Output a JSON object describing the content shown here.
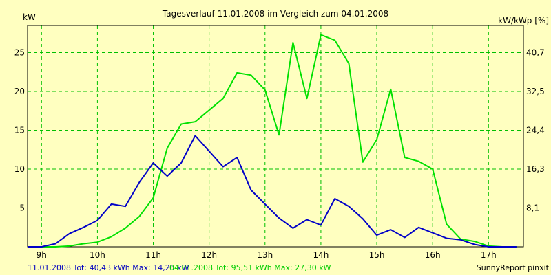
{
  "chart_data": {
    "type": "line",
    "title": "Tagesverlauf 11.01.2008 im Vergleich zum 04.01.2008",
    "ylabel_left": "kW",
    "ylabel_right": "kW/kWp [%]",
    "xlim": [
      8.75,
      17.625
    ],
    "ylim": [
      0,
      28.5
    ],
    "x_ticks": [
      {
        "value": 9,
        "label": "9h"
      },
      {
        "value": 10,
        "label": "10h"
      },
      {
        "value": 11,
        "label": "11h"
      },
      {
        "value": 12,
        "label": "12h"
      },
      {
        "value": 13,
        "label": "13h"
      },
      {
        "value": 14,
        "label": "14h"
      },
      {
        "value": 15,
        "label": "15h"
      },
      {
        "value": 16,
        "label": "16h"
      },
      {
        "value": 17,
        "label": "17h"
      }
    ],
    "y_ticks_left": [
      {
        "value": 5,
        "label": "5"
      },
      {
        "value": 10,
        "label": "10"
      },
      {
        "value": 15,
        "label": "15"
      },
      {
        "value": 20,
        "label": "20"
      },
      {
        "value": 25,
        "label": "25"
      }
    ],
    "y_ticks_right": [
      {
        "value": 5,
        "label": "8,1"
      },
      {
        "value": 10,
        "label": "16,3"
      },
      {
        "value": 15,
        "label": "24,4"
      },
      {
        "value": 20,
        "label": "32,5"
      },
      {
        "value": 25,
        "label": "40,7"
      }
    ],
    "grid": true,
    "series": [
      {
        "color": "#00e000",
        "points": [
          [
            8.75,
            0
          ],
          [
            9,
            0
          ],
          [
            9.25,
            0
          ],
          [
            9.5,
            0.1
          ],
          [
            9.75,
            0.4
          ],
          [
            10,
            0.6
          ],
          [
            10.25,
            1.3
          ],
          [
            10.5,
            2.4
          ],
          [
            10.75,
            3.9
          ],
          [
            11,
            6.3
          ],
          [
            11.25,
            12.7
          ],
          [
            11.5,
            15.8
          ],
          [
            11.75,
            16.1
          ],
          [
            12,
            17.6
          ],
          [
            12.25,
            19.1
          ],
          [
            12.5,
            22.4
          ],
          [
            12.75,
            22.1
          ],
          [
            13,
            20.2
          ],
          [
            13.25,
            14.4
          ],
          [
            13.5,
            26.3
          ],
          [
            13.75,
            19.1
          ],
          [
            14,
            27.3
          ],
          [
            14.25,
            26.6
          ],
          [
            14.5,
            23.6
          ],
          [
            14.75,
            10.9
          ],
          [
            15,
            13.8
          ],
          [
            15.25,
            20.3
          ],
          [
            15.5,
            11.5
          ],
          [
            15.75,
            11.0
          ],
          [
            16,
            10.0
          ],
          [
            16.25,
            2.9
          ],
          [
            16.5,
            1.0
          ],
          [
            16.75,
            0.7
          ],
          [
            17,
            0.1
          ],
          [
            17.25,
            0
          ],
          [
            17.5,
            0
          ]
        ]
      },
      {
        "color": "#0000c8",
        "points": [
          [
            8.75,
            0
          ],
          [
            9,
            0
          ],
          [
            9.25,
            0.4
          ],
          [
            9.5,
            1.7
          ],
          [
            9.75,
            2.5
          ],
          [
            10,
            3.4
          ],
          [
            10.25,
            5.5
          ],
          [
            10.5,
            5.2
          ],
          [
            10.75,
            8.3
          ],
          [
            11,
            10.8
          ],
          [
            11.25,
            9.1
          ],
          [
            11.5,
            10.8
          ],
          [
            11.75,
            14.3
          ],
          [
            12,
            12.3
          ],
          [
            12.25,
            10.3
          ],
          [
            12.5,
            11.5
          ],
          [
            12.75,
            7.3
          ],
          [
            13,
            5.5
          ],
          [
            13.25,
            3.7
          ],
          [
            13.5,
            2.4
          ],
          [
            13.75,
            3.5
          ],
          [
            14,
            2.8
          ],
          [
            14.25,
            6.2
          ],
          [
            14.5,
            5.2
          ],
          [
            14.75,
            3.6
          ],
          [
            15,
            1.5
          ],
          [
            15.25,
            2.2
          ],
          [
            15.5,
            1.2
          ],
          [
            15.75,
            2.5
          ],
          [
            16,
            1.8
          ],
          [
            16.25,
            1.1
          ],
          [
            16.5,
            0.9
          ],
          [
            16.75,
            0.3
          ],
          [
            17,
            0
          ],
          [
            17.25,
            0
          ],
          [
            17.5,
            0
          ]
        ]
      }
    ]
  },
  "footer": {
    "series_blue_summary": "11.01.2008 Tot: 40,43 kWh Max: 14,26 kW",
    "series_green_summary": "04.01.2008 Tot: 95,51 kWh Max: 27,30 kW",
    "credit": "SunnyReport pinxit"
  },
  "colors": {
    "background": "#ffffc0",
    "grid": "#00c000",
    "frame": "#000000"
  }
}
